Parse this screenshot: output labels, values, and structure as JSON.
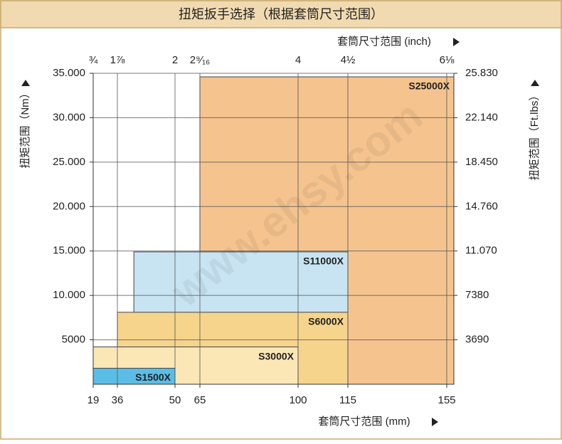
{
  "chart_data": {
    "type": "range-bar",
    "title": "扭矩扳手选择（根据套筒尺寸范围）",
    "x_label": "套筒尺寸范围 (mm)",
    "x2_label": "套筒尺寸范围 (inch)",
    "y_label": "扭矩范围（Nm）",
    "y2_label": "扭矩范围（Ft.lbs）",
    "watermark": "www.ehsy.com",
    "xlim": [
      19,
      158
    ],
    "xticks": [
      19,
      36,
      50,
      65,
      100,
      115,
      155
    ],
    "x2ticks": [
      {
        "value": 0.75,
        "label": "¾"
      },
      {
        "value": 1.875,
        "label": "1⅞"
      },
      2,
      {
        "value": 2.5625,
        "label": "2⁹⁄₁₆"
      },
      4,
      {
        "value": 4.5,
        "label": "4½"
      },
      {
        "value": 6.125,
        "label": "6⅛"
      }
    ],
    "ylim": [
      0,
      35000
    ],
    "yticks": [
      {
        "value": 5000,
        "label": "5000"
      },
      {
        "value": 10000,
        "label": "10.000"
      },
      {
        "value": 15000,
        "label": "15.000"
      },
      {
        "value": 20000,
        "label": "20.000"
      },
      {
        "value": 25000,
        "label": "25.000"
      },
      {
        "value": 30000,
        "label": "30.000"
      },
      {
        "value": 35000,
        "label": "35.000"
      }
    ],
    "y2lim": [
      0,
      25830
    ],
    "y2ticks": [
      3690,
      7380,
      {
        "value": 11070,
        "label": "11.070"
      },
      {
        "value": 14760,
        "label": "14.760"
      },
      {
        "value": 18450,
        "label": "18.450"
      },
      {
        "value": 22140,
        "label": "22.140"
      },
      {
        "value": 25830,
        "label": "25.830"
      }
    ],
    "grid": true,
    "series": [
      {
        "name": "S25000X",
        "color": "#f5c48e",
        "x": [
          65,
          158
        ],
        "value": 34600
      },
      {
        "name": "S11000X",
        "color": "#c8e4f2",
        "x": [
          40,
          115
        ],
        "value": 14900
      },
      {
        "name": "S6000X",
        "color": "#f6d48c",
        "x": [
          36,
          115
        ],
        "value": 8100
      },
      {
        "name": "S3000X",
        "color": "#fbe6b6",
        "x": [
          19,
          100
        ],
        "value": 4200
      },
      {
        "name": "S1500X",
        "color": "#5bbde6",
        "x": [
          19,
          50
        ],
        "value": 1800
      }
    ]
  }
}
